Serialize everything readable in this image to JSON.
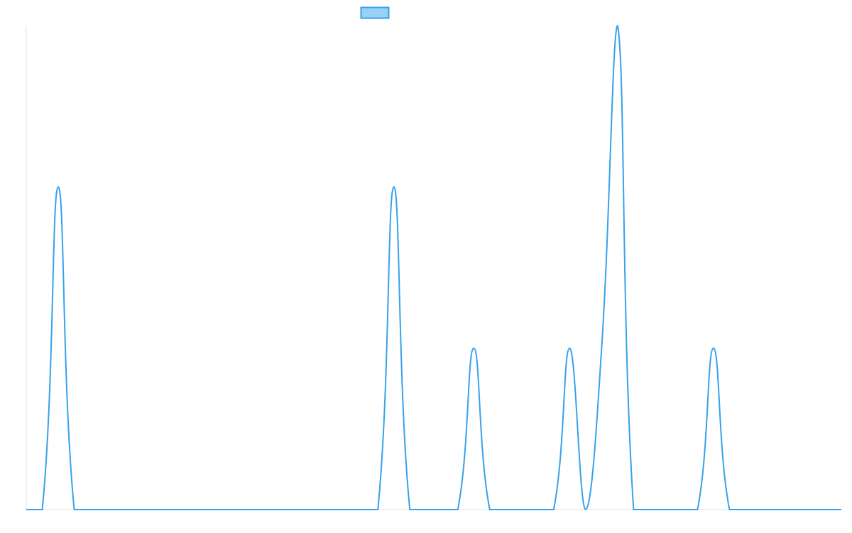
{
  "chart_data": {
    "type": "line",
    "title": "",
    "xlabel": "",
    "ylabel": "",
    "ylim": [
      0,
      3
    ],
    "grid": false,
    "legend": {
      "placement": "top",
      "label": ""
    },
    "color": "#36a2eb",
    "fill_color": "#9ad0f5",
    "x": [
      0,
      1,
      2,
      3,
      4,
      5,
      6,
      7,
      8,
      9,
      10,
      11,
      12,
      13,
      14,
      15,
      16,
      17,
      18,
      19,
      20,
      21,
      22,
      23,
      24,
      25,
      26,
      27,
      28,
      29,
      30,
      31,
      32,
      33,
      34,
      35,
      36,
      37,
      38,
      39,
      40,
      41,
      42,
      43,
      44,
      45,
      46,
      47,
      48,
      49,
      50,
      51
    ],
    "series": [
      {
        "values": [
          0,
          0,
          2,
          0,
          0,
          0,
          0,
          0,
          0,
          0,
          0,
          0,
          0,
          0,
          0,
          0,
          0,
          0,
          0,
          0,
          0,
          0,
          0,
          2,
          0,
          0,
          0,
          0,
          1,
          0,
          0,
          0,
          0,
          0,
          1,
          0,
          1,
          3,
          0,
          0,
          0,
          0,
          0,
          1,
          0,
          0,
          0,
          0,
          0,
          0,
          0,
          0
        ]
      }
    ]
  }
}
